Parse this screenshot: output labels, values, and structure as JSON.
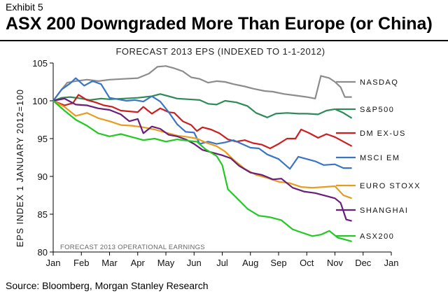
{
  "header": {
    "exhibit": "Exhibit 5",
    "headline": "ASX 200 Downgraded More Than Europe (or China)"
  },
  "footer": {
    "source": "Source: Bloomberg, Morgan Stanley Research"
  },
  "chart_data": {
    "type": "line",
    "title": "FORECAST 2013 EPS (INDEXED TO 1-1-2012)",
    "ylabel": "EPS INDEX 1 JANUARY 2012=100",
    "xlabel": "",
    "annotation": "FORECAST 2013 OPERATIONAL EARNINGS",
    "x_ticks": [
      "Jan",
      "Feb",
      "Mar",
      "Apr",
      "May",
      "Jun",
      "Jul",
      "Aug",
      "Sep",
      "Oct",
      "Nov",
      "Dec",
      "Jan"
    ],
    "y_ticks": [
      80,
      85,
      90,
      95,
      100,
      105
    ],
    "xlim": [
      0,
      12
    ],
    "ylim": [
      80,
      105
    ],
    "grid": false,
    "legend": "right",
    "series": [
      {
        "name": "NASDAQ",
        "color": "#8c8c8c",
        "points": [
          [
            0,
            100
          ],
          [
            0.3,
            101.5
          ],
          [
            0.5,
            102.4
          ],
          [
            0.8,
            102.6
          ],
          [
            1.2,
            102.8
          ],
          [
            1.6,
            102.6
          ],
          [
            2,
            102.8
          ],
          [
            2.5,
            102.9
          ],
          [
            3,
            103
          ],
          [
            3.4,
            103.6
          ],
          [
            3.7,
            104.5
          ],
          [
            4,
            104.6
          ],
          [
            4.3,
            104.3
          ],
          [
            4.6,
            103.9
          ],
          [
            4.9,
            103.1
          ],
          [
            5.2,
            102.9
          ],
          [
            5.5,
            102.4
          ],
          [
            5.8,
            102.6
          ],
          [
            6.1,
            102.5
          ],
          [
            6.4,
            102.2
          ],
          [
            6.8,
            101.9
          ],
          [
            7.1,
            101.6
          ],
          [
            7.5,
            101.3
          ],
          [
            7.8,
            101.2
          ],
          [
            8.2,
            100.9
          ],
          [
            8.6,
            100.7
          ],
          [
            9,
            100.5
          ],
          [
            9.3,
            100.3
          ],
          [
            9.5,
            103.3
          ],
          [
            9.8,
            103
          ],
          [
            10,
            102.5
          ],
          [
            10.2,
            101.8
          ],
          [
            10.35,
            100.5
          ],
          [
            10.6,
            100.5
          ]
        ]
      },
      {
        "name": "S&P500",
        "color": "#2e8b57",
        "points": [
          [
            0,
            100
          ],
          [
            0.3,
            100.4
          ],
          [
            0.6,
            100.5
          ],
          [
            1,
            100.3
          ],
          [
            1.3,
            100.1
          ],
          [
            1.7,
            100.3
          ],
          [
            2,
            100.2
          ],
          [
            2.5,
            100.3
          ],
          [
            3,
            100.4
          ],
          [
            3.5,
            100.6
          ],
          [
            3.8,
            100.9
          ],
          [
            4.1,
            100.6
          ],
          [
            4.4,
            100.3
          ],
          [
            4.8,
            100.2
          ],
          [
            5.2,
            100.1
          ],
          [
            5.5,
            99.6
          ],
          [
            5.8,
            99.5
          ],
          [
            6.1,
            100
          ],
          [
            6.5,
            99.8
          ],
          [
            6.9,
            99.3
          ],
          [
            7.2,
            98.4
          ],
          [
            7.6,
            97.8
          ],
          [
            7.9,
            98.3
          ],
          [
            8.3,
            98.4
          ],
          [
            8.7,
            98.3
          ],
          [
            9,
            98.3
          ],
          [
            9.4,
            98.2
          ],
          [
            9.7,
            98.7
          ],
          [
            10,
            98.9
          ],
          [
            10.3,
            98.4
          ],
          [
            10.6,
            97.7
          ]
        ]
      },
      {
        "name": "DM EX-US",
        "color": "#cc1f1f",
        "points": [
          [
            0,
            100
          ],
          [
            0.4,
            99.4
          ],
          [
            0.7,
            99.7
          ],
          [
            0.9,
            100.8
          ],
          [
            1.2,
            100.1
          ],
          [
            1.5,
            99.8
          ],
          [
            1.8,
            99.4
          ],
          [
            2.1,
            99.2
          ],
          [
            2.4,
            98.7
          ],
          [
            2.7,
            98.6
          ],
          [
            3,
            98.5
          ],
          [
            3.2,
            99.2
          ],
          [
            3.5,
            98.3
          ],
          [
            3.8,
            99
          ],
          [
            4.1,
            98.5
          ],
          [
            4.3,
            98.4
          ],
          [
            4.6,
            97.3
          ],
          [
            4.9,
            96.8
          ],
          [
            5.1,
            96
          ],
          [
            5.3,
            96.5
          ],
          [
            5.6,
            96.2
          ],
          [
            5.9,
            95.7
          ],
          [
            6.2,
            94.9
          ],
          [
            6.5,
            94.6
          ],
          [
            6.8,
            94.8
          ],
          [
            7.1,
            94.4
          ],
          [
            7.4,
            94.2
          ],
          [
            7.7,
            93.7
          ],
          [
            8,
            94.3
          ],
          [
            8.3,
            95
          ],
          [
            8.6,
            95
          ],
          [
            8.8,
            96.2
          ],
          [
            9.1,
            95.7
          ],
          [
            9.4,
            95.1
          ],
          [
            9.7,
            95.6
          ],
          [
            10,
            95.2
          ],
          [
            10.3,
            94.6
          ],
          [
            10.6,
            94
          ]
        ]
      },
      {
        "name": "MSCI EM",
        "color": "#3a75c4",
        "points": [
          [
            0,
            100
          ],
          [
            0.3,
            101.5
          ],
          [
            0.6,
            102.3
          ],
          [
            0.8,
            103
          ],
          [
            1.1,
            102
          ],
          [
            1.4,
            102.6
          ],
          [
            1.7,
            102.2
          ],
          [
            2,
            100.4
          ],
          [
            2.3,
            100.2
          ],
          [
            2.6,
            100
          ],
          [
            2.9,
            100.1
          ],
          [
            3.2,
            99.9
          ],
          [
            3.5,
            100.6
          ],
          [
            3.8,
            99.9
          ],
          [
            4.1,
            98.5
          ],
          [
            4.4,
            96.9
          ],
          [
            4.7,
            95.9
          ],
          [
            5,
            95.8
          ],
          [
            5.2,
            94.3
          ],
          [
            5.5,
            94.6
          ],
          [
            5.8,
            94.3
          ],
          [
            6.1,
            94.5
          ],
          [
            6.4,
            94.8
          ],
          [
            6.7,
            94.3
          ],
          [
            7,
            93.8
          ],
          [
            7.3,
            93.7
          ],
          [
            7.6,
            92.9
          ],
          [
            8,
            92.3
          ],
          [
            8.4,
            91
          ],
          [
            8.7,
            92.6
          ],
          [
            9,
            92.3
          ],
          [
            9.3,
            92
          ],
          [
            9.6,
            91.5
          ],
          [
            10,
            91.6
          ],
          [
            10.3,
            91.1
          ],
          [
            10.6,
            91.1
          ]
        ]
      },
      {
        "name": "EURO STOXX",
        "color": "#e89c1e",
        "points": [
          [
            0,
            100
          ],
          [
            0.4,
            99.2
          ],
          [
            0.8,
            98
          ],
          [
            1.2,
            98.4
          ],
          [
            1.6,
            97.7
          ],
          [
            2,
            97.3
          ],
          [
            2.4,
            96.8
          ],
          [
            2.8,
            96.7
          ],
          [
            3.2,
            96.5
          ],
          [
            3.6,
            96.2
          ],
          [
            4,
            95.8
          ],
          [
            4.4,
            95.4
          ],
          [
            4.8,
            95.2
          ],
          [
            5.1,
            95
          ],
          [
            5.4,
            94.5
          ],
          [
            5.8,
            94
          ],
          [
            6.1,
            93.3
          ],
          [
            6.4,
            92.2
          ],
          [
            6.8,
            91
          ],
          [
            7.2,
            90.2
          ],
          [
            7.6,
            89.8
          ],
          [
            8,
            89.3
          ],
          [
            8.4,
            89.1
          ],
          [
            8.8,
            88.6
          ],
          [
            9.2,
            88.5
          ],
          [
            9.6,
            88.6
          ],
          [
            10,
            88.7
          ],
          [
            10.3,
            87.5
          ],
          [
            10.6,
            87.1
          ]
        ]
      },
      {
        "name": "SHANGHAI",
        "color": "#6a1d7a",
        "points": [
          [
            0,
            100
          ],
          [
            0.4,
            100.3
          ],
          [
            0.8,
            99.5
          ],
          [
            1.2,
            99.4
          ],
          [
            1.6,
            99
          ],
          [
            2,
            98.8
          ],
          [
            2.4,
            98.2
          ],
          [
            2.7,
            97.3
          ],
          [
            3,
            97.6
          ],
          [
            3.2,
            95.7
          ],
          [
            3.5,
            96.6
          ],
          [
            3.8,
            96.3
          ],
          [
            4.1,
            95.5
          ],
          [
            4.4,
            95.3
          ],
          [
            4.7,
            94.9
          ],
          [
            5,
            94.3
          ],
          [
            5.3,
            93.5
          ],
          [
            5.6,
            93.2
          ],
          [
            6,
            92.8
          ],
          [
            6.3,
            92.4
          ],
          [
            6.6,
            91.4
          ],
          [
            7,
            90.5
          ],
          [
            7.4,
            90.2
          ],
          [
            7.8,
            89.6
          ],
          [
            8.1,
            89.7
          ],
          [
            8.5,
            88.5
          ],
          [
            8.9,
            88
          ],
          [
            9.3,
            87.8
          ],
          [
            9.7,
            87.4
          ],
          [
            10,
            87.1
          ],
          [
            10.2,
            86.5
          ],
          [
            10.4,
            84.3
          ],
          [
            10.6,
            84.1
          ]
        ]
      },
      {
        "name": "ASX200",
        "color": "#22c922",
        "points": [
          [
            0,
            100
          ],
          [
            0.4,
            98.7
          ],
          [
            0.8,
            97.5
          ],
          [
            1.2,
            96.7
          ],
          [
            1.6,
            95.7
          ],
          [
            2,
            95.3
          ],
          [
            2.4,
            95.6
          ],
          [
            2.8,
            95.2
          ],
          [
            3.2,
            94.8
          ],
          [
            3.6,
            95
          ],
          [
            4,
            94.6
          ],
          [
            4.4,
            94.9
          ],
          [
            4.8,
            94.7
          ],
          [
            5.1,
            94.6
          ],
          [
            5.4,
            93.6
          ],
          [
            5.8,
            92.7
          ],
          [
            6,
            91.5
          ],
          [
            6.2,
            88.3
          ],
          [
            6.5,
            87.2
          ],
          [
            6.9,
            85.7
          ],
          [
            7.3,
            84.8
          ],
          [
            7.7,
            84.6
          ],
          [
            8.1,
            84.2
          ],
          [
            8.5,
            83
          ],
          [
            8.8,
            82.6
          ],
          [
            9.2,
            82.1
          ],
          [
            9.5,
            82.3
          ],
          [
            9.8,
            82.8
          ],
          [
            10.1,
            81.9
          ],
          [
            10.4,
            81.6
          ],
          [
            10.6,
            81.4
          ]
        ]
      }
    ]
  }
}
